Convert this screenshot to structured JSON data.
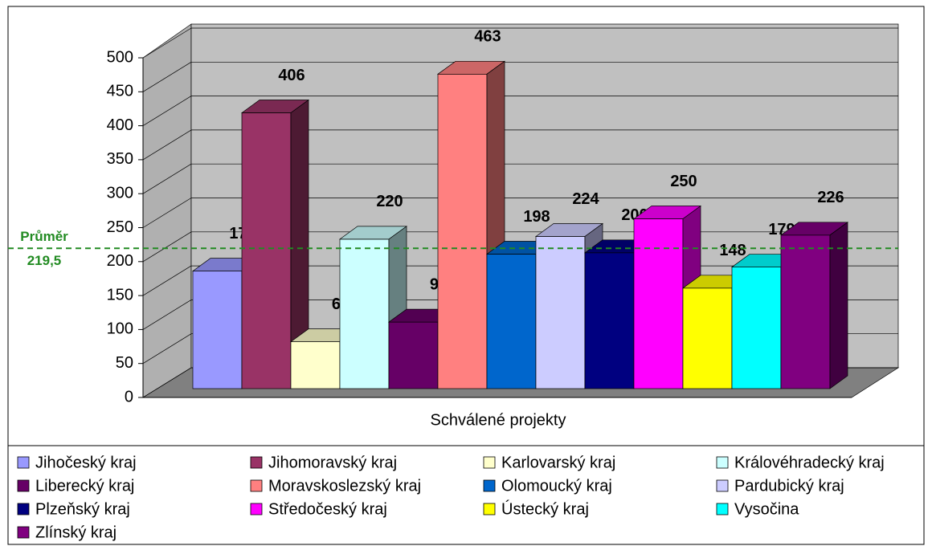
{
  "chart_data": {
    "type": "bar",
    "xlabel": "Schválené projekty",
    "categories": [
      "Jihočeský kraj",
      "Jihomoravský kraj",
      "Karlovarský kraj",
      "Královéhradecký kraj",
      "Liberecký kraj",
      "Moravskoslezský kraj",
      "Olomoucký kraj",
      "Pardubický kraj",
      "Plzeňský kraj",
      "Středočeský kraj",
      "Ústecký kraj",
      "Vysočina",
      "Zlínský kraj"
    ],
    "values": [
      173,
      406,
      69,
      220,
      98,
      463,
      198,
      224,
      200,
      250,
      148,
      179,
      226
    ],
    "colors": [
      "#9999ff",
      "#993366",
      "#ffffcc",
      "#ccffff",
      "#660066",
      "#ff8080",
      "#0066cc",
      "#ccccff",
      "#000080",
      "#ff00ff",
      "#ffff00",
      "#00ffff",
      "#800080"
    ],
    "ylim": [
      0,
      500
    ],
    "yticks": [
      0,
      50,
      100,
      150,
      200,
      250,
      300,
      350,
      400,
      450,
      500
    ],
    "grid": true,
    "average_line": {
      "label": "Průměr",
      "value": 219.5,
      "value_label": "219,5",
      "color": "#228b22"
    }
  }
}
